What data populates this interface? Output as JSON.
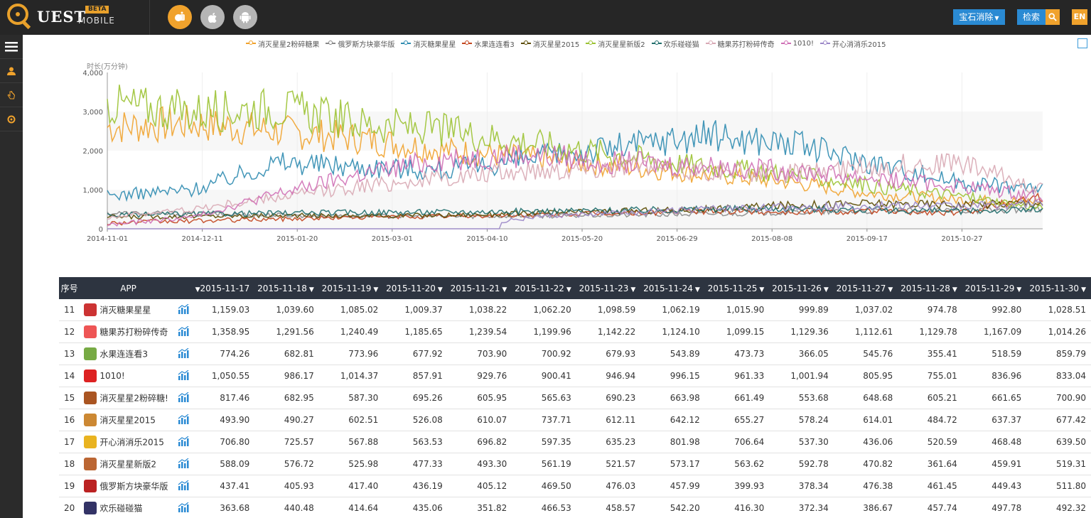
{
  "header": {
    "logo_text": "UEST",
    "logo_mobile": "MOBILE",
    "logo_beta": "BETA",
    "platforms": [
      {
        "name": "all-platforms",
        "color": "#f0a22c",
        "icon": "mixed-icon"
      },
      {
        "name": "ios",
        "color": "#b5b5b5",
        "icon": "apple-icon"
      },
      {
        "name": "android",
        "color": "#b5b5b5",
        "icon": "android-icon"
      }
    ],
    "gem_dropdown": "宝石消除",
    "search_button": "检索",
    "lang_button": "EN"
  },
  "sidebar": {
    "items": [
      {
        "name": "menu-icon"
      },
      {
        "name": "user-icon"
      },
      {
        "name": "hand-icon"
      },
      {
        "name": "gear-icon"
      }
    ]
  },
  "chart_data": {
    "type": "line",
    "ylabel": "时长(万分钟)",
    "ylim": [
      0,
      4000
    ],
    "yticks": [
      "4,000",
      "3,000",
      "2,000",
      "1,000",
      "0"
    ],
    "x_ticks": [
      "2014-11-01",
      "2014-12-11",
      "2015-01-20",
      "2015-03-01",
      "2015-04-10",
      "2015-05-20",
      "2015-06-29",
      "2015-08-08",
      "2015-09-17",
      "2015-10-27"
    ],
    "x_range": [
      "2014-11-01",
      "2015-11-30"
    ],
    "legend_position": "top-center",
    "grid": true,
    "series": [
      {
        "name": "消灭星星2粉碎糖果",
        "color": "#f0a22c",
        "approx_values": [
          2600,
          2700,
          2500,
          2300,
          2000,
          1800,
          1600,
          1400,
          1200,
          900,
          750,
          700
        ]
      },
      {
        "name": "俄罗斯方块豪华版",
        "color": "#888888",
        "approx_values": [
          400,
          380,
          350,
          330,
          320,
          330,
          350,
          380,
          420,
          450,
          460,
          510
        ]
      },
      {
        "name": "消灭糖果星星",
        "color": "#2e8bb0",
        "approx_values": [
          850,
          1000,
          1700,
          1600,
          1500,
          1800,
          2100,
          2400,
          2200,
          1700,
          1200,
          1030
        ]
      },
      {
        "name": "水果连连看3",
        "color": "#c2451e",
        "approx_values": [
          150,
          200,
          250,
          300,
          320,
          350,
          400,
          450,
          430,
          450,
          400,
          860
        ]
      },
      {
        "name": "消灭星星2015",
        "color": "#5a4a00",
        "approx_values": [
          300,
          320,
          340,
          330,
          350,
          400,
          450,
          500,
          600,
          650,
          620,
          677
        ]
      },
      {
        "name": "消灭星星新版2",
        "color": "#9bc232",
        "approx_values": [
          3200,
          3000,
          3100,
          2700,
          2500,
          2200,
          1900,
          1600,
          1400,
          1100,
          850,
          520
        ]
      },
      {
        "name": "欢乐碰碰猫",
        "color": "#1f6d6b",
        "approx_values": [
          350,
          380,
          400,
          420,
          430,
          450,
          470,
          500,
          520,
          480,
          450,
          492
        ]
      },
      {
        "name": "糖果苏打粉碎传奇",
        "color": "#d8a8b4",
        "approx_values": [
          300,
          500,
          800,
          1100,
          1300,
          1500,
          1600,
          1500,
          1400,
          1600,
          1700,
          1014
        ]
      },
      {
        "name": "1010!",
        "color": "#cf6fb5",
        "approx_values": [
          100,
          300,
          900,
          1400,
          1800,
          1900,
          1700,
          1600,
          1500,
          1300,
          1100,
          833
        ]
      },
      {
        "name": "开心消消乐2015",
        "color": "#9b87c7",
        "approx_values": [
          0,
          0,
          0,
          0,
          0,
          300,
          400,
          500,
          550,
          600,
          580,
          640
        ]
      }
    ]
  },
  "table": {
    "headers": {
      "idx": "序号",
      "app": "APP",
      "dates": [
        "2015-11-17",
        "2015-11-18",
        "2015-11-19",
        "2015-11-20",
        "2015-11-21",
        "2015-11-22",
        "2015-11-23",
        "2015-11-24",
        "2015-11-25",
        "2015-11-26",
        "2015-11-27",
        "2015-11-28",
        "2015-11-29",
        "2015-11-30"
      ]
    },
    "rows": [
      {
        "idx": "11",
        "app": "消灭糖果星星",
        "icon_color": "#c33",
        "values": [
          "1,159.03",
          "1,039.60",
          "1,085.02",
          "1,009.37",
          "1,038.22",
          "1,062.20",
          "1,098.59",
          "1,062.19",
          "1,015.90",
          "999.89",
          "1,037.02",
          "974.78",
          "992.80",
          "1,028.51"
        ]
      },
      {
        "idx": "12",
        "app": "糖果苏打粉碎传奇",
        "icon_color": "#e55",
        "values": [
          "1,358.95",
          "1,291.56",
          "1,240.49",
          "1,185.65",
          "1,239.54",
          "1,199.96",
          "1,142.22",
          "1,124.10",
          "1,099.15",
          "1,129.36",
          "1,112.61",
          "1,129.78",
          "1,167.09",
          "1,014.26"
        ]
      },
      {
        "idx": "13",
        "app": "水果连连看3",
        "icon_color": "#7a4",
        "values": [
          "774.26",
          "682.81",
          "773.96",
          "677.92",
          "703.90",
          "700.92",
          "679.93",
          "543.89",
          "473.73",
          "366.05",
          "545.76",
          "355.41",
          "518.59",
          "859.79"
        ]
      },
      {
        "idx": "14",
        "app": "1010!",
        "icon_color": "#d22",
        "values": [
          "1,050.55",
          "986.17",
          "1,014.37",
          "857.91",
          "929.76",
          "900.41",
          "946.94",
          "996.15",
          "961.33",
          "1,001.94",
          "805.95",
          "755.01",
          "836.96",
          "833.04"
        ]
      },
      {
        "idx": "15",
        "app": "消灭星星2粉碎糖!",
        "icon_color": "#a52",
        "values": [
          "817.46",
          "682.95",
          "587.30",
          "695.26",
          "605.95",
          "565.63",
          "690.23",
          "663.98",
          "661.49",
          "553.68",
          "648.68",
          "605.21",
          "661.65",
          "700.90"
        ]
      },
      {
        "idx": "16",
        "app": "消灭星星2015",
        "icon_color": "#c83",
        "values": [
          "493.90",
          "490.27",
          "602.51",
          "526.08",
          "610.07",
          "737.71",
          "612.11",
          "642.12",
          "655.27",
          "578.24",
          "614.01",
          "484.72",
          "637.37",
          "677.42"
        ]
      },
      {
        "idx": "17",
        "app": "开心消消乐2015",
        "icon_color": "#e9b320",
        "values": [
          "706.80",
          "725.57",
          "567.88",
          "563.53",
          "696.82",
          "597.35",
          "635.23",
          "801.98",
          "706.64",
          "537.30",
          "436.06",
          "520.59",
          "468.48",
          "639.50"
        ]
      },
      {
        "idx": "18",
        "app": "消灭星星新版2",
        "icon_color": "#b63",
        "values": [
          "588.09",
          "576.72",
          "525.98",
          "477.33",
          "493.30",
          "561.19",
          "521.57",
          "573.17",
          "563.62",
          "592.78",
          "470.82",
          "361.64",
          "459.91",
          "519.31"
        ]
      },
      {
        "idx": "19",
        "app": "俄罗斯方块豪华版",
        "icon_color": "#b22",
        "values": [
          "437.41",
          "405.93",
          "417.40",
          "436.19",
          "405.12",
          "469.50",
          "476.03",
          "457.99",
          "399.93",
          "378.34",
          "476.38",
          "461.45",
          "449.43",
          "511.80"
        ]
      },
      {
        "idx": "20",
        "app": "欢乐碰碰猫",
        "icon_color": "#336",
        "values": [
          "363.68",
          "440.48",
          "414.64",
          "435.06",
          "351.82",
          "466.53",
          "458.57",
          "542.20",
          "416.30",
          "372.34",
          "386.67",
          "457.74",
          "497.78",
          "492.32"
        ]
      }
    ]
  }
}
